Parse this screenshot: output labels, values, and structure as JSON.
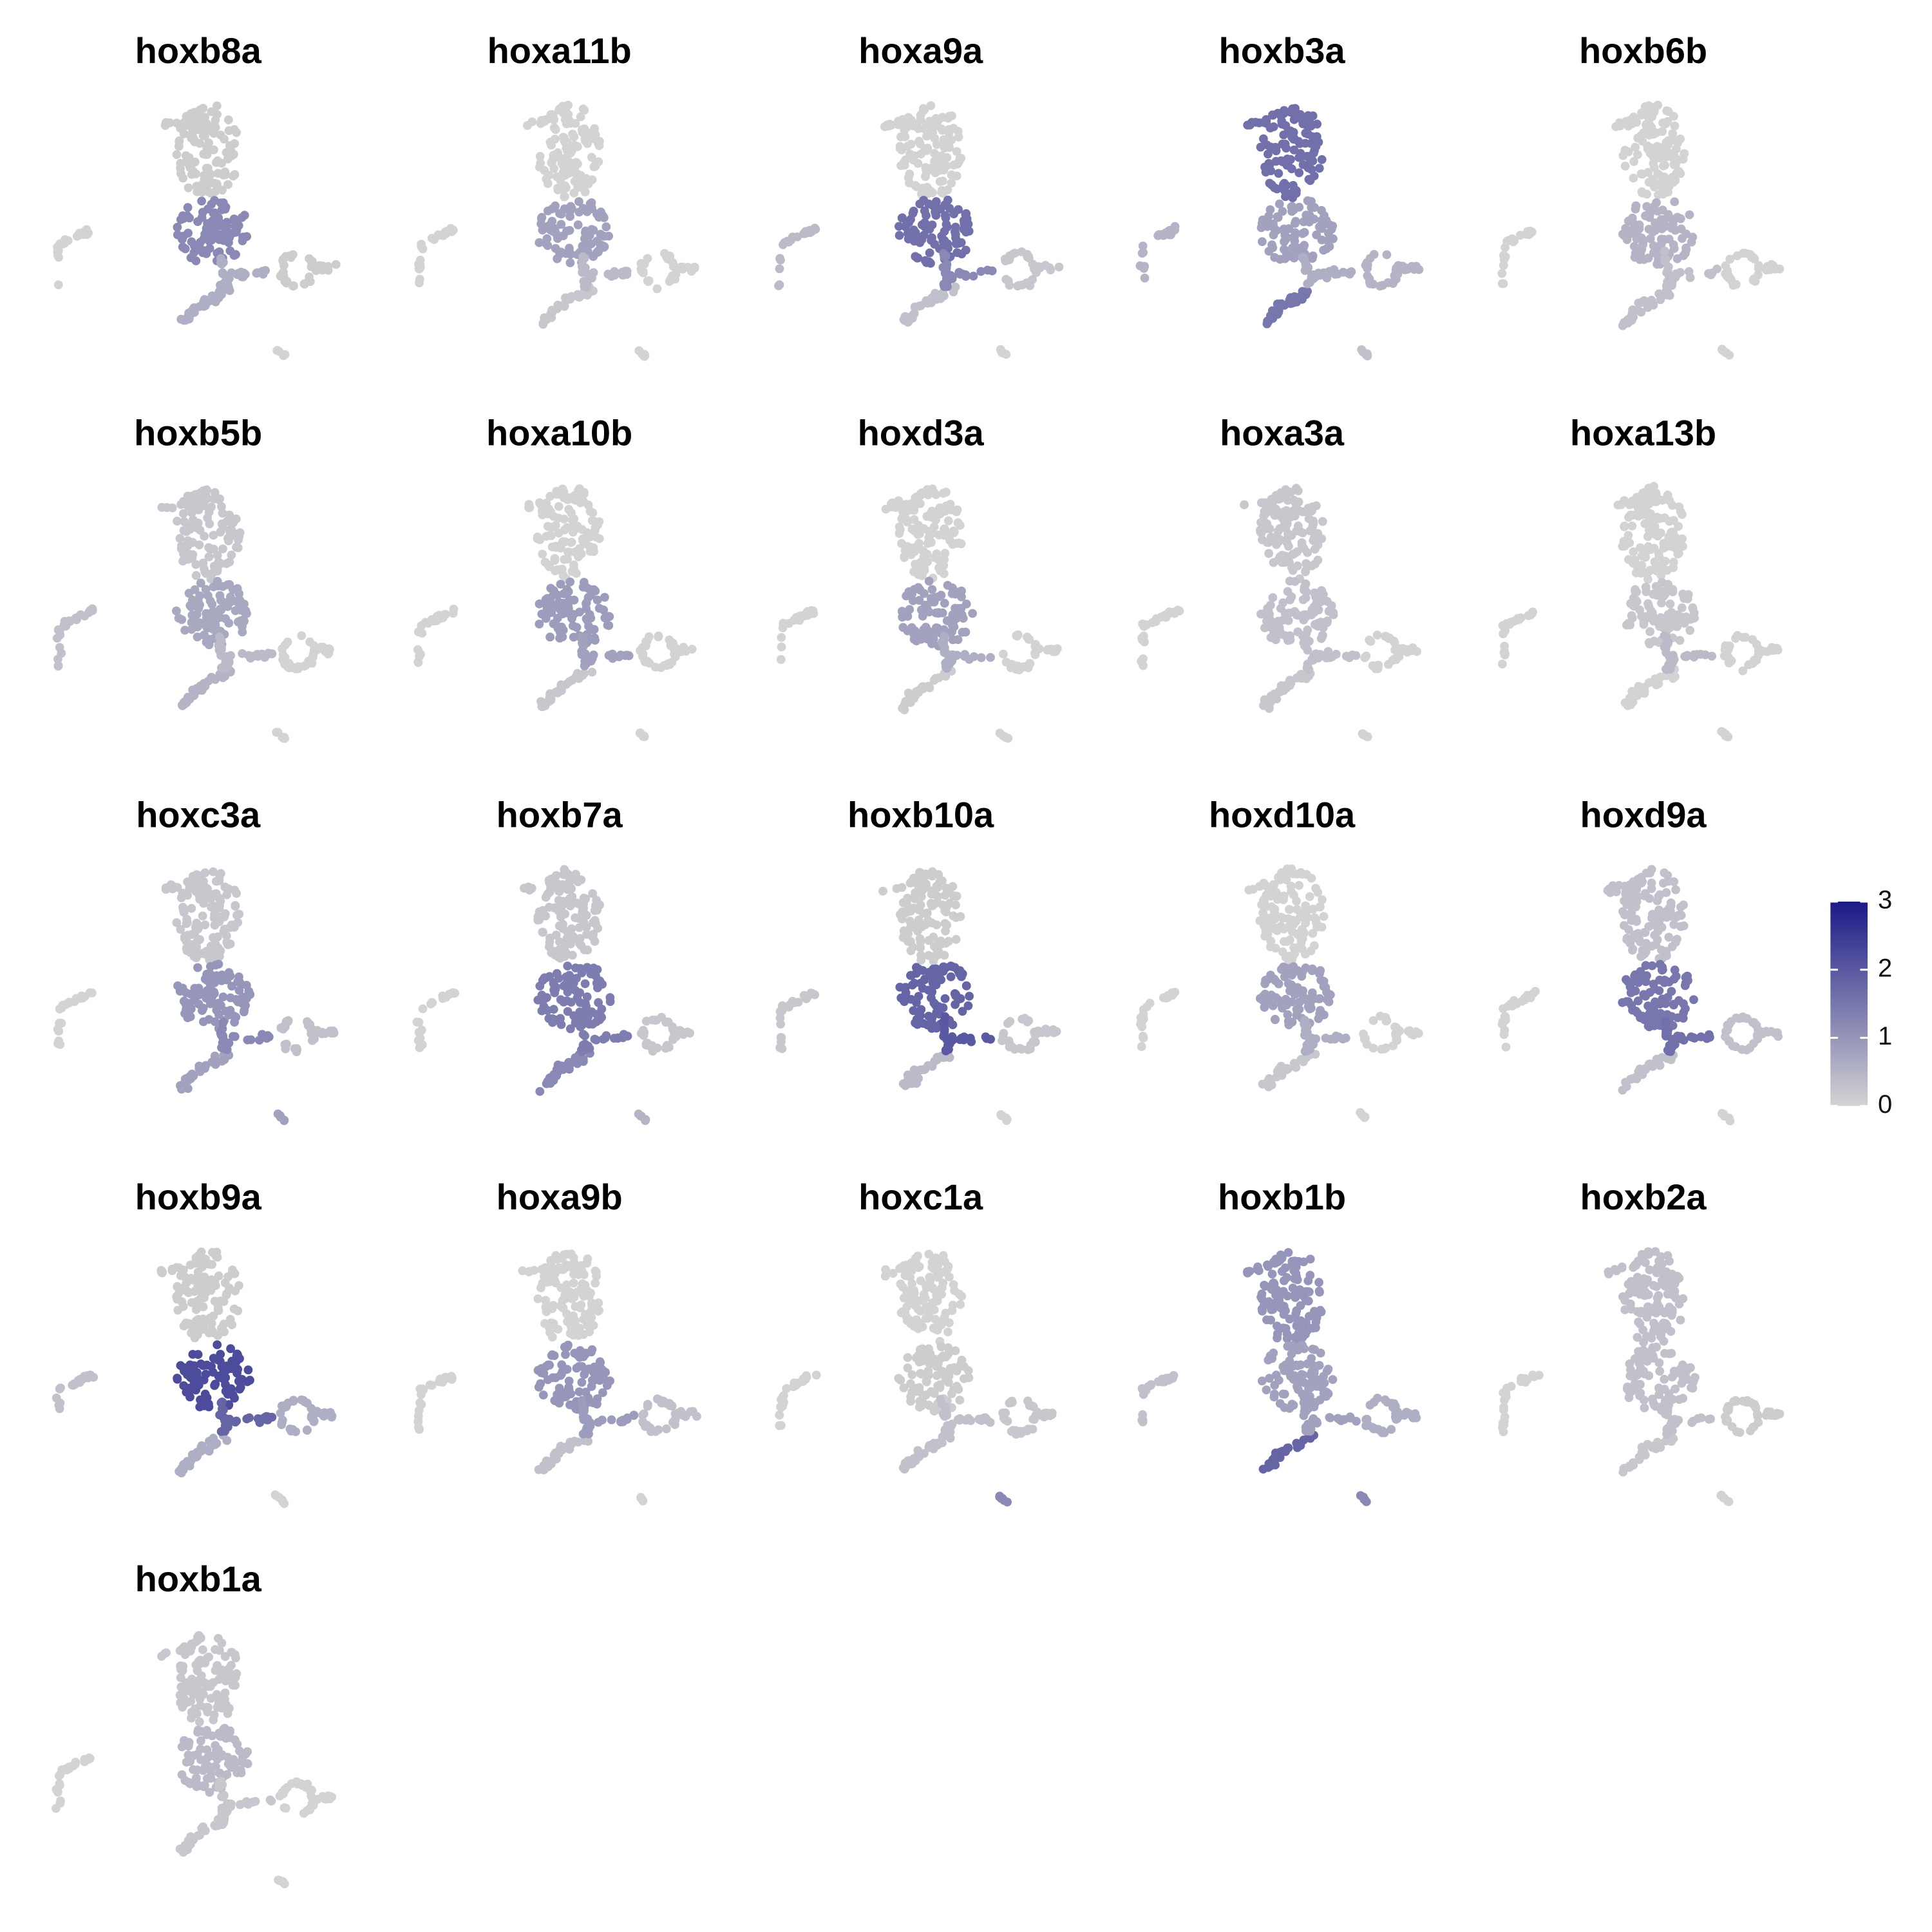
{
  "chart_data": [
    {
      "type": "scatter",
      "title": "hoxb8a",
      "values": [
        0.1,
        1.2,
        0.6,
        0.6,
        0.1,
        0,
        0
      ]
    },
    {
      "type": "scatter",
      "title": "hoxa11b",
      "values": [
        0,
        0.8,
        0.2,
        0.4,
        0,
        0,
        0
      ]
    },
    {
      "type": "scatter",
      "title": "hoxa9a",
      "values": [
        0,
        1.6,
        0.3,
        1.2,
        0.2,
        0.4,
        0
      ]
    },
    {
      "type": "scatter",
      "title": "hoxb3a",
      "values": [
        1.6,
        0.8,
        1.5,
        0.6,
        0.5,
        0.5,
        0.3
      ]
    },
    {
      "type": "scatter",
      "title": "hoxb6b",
      "values": [
        0,
        0.5,
        0.3,
        0.3,
        0,
        0,
        0
      ]
    },
    {
      "type": "scatter",
      "title": "hoxb5b",
      "values": [
        0.2,
        0.7,
        0.5,
        0.4,
        0,
        0.3,
        0
      ]
    },
    {
      "type": "scatter",
      "title": "hoxa10b",
      "values": [
        0,
        0.9,
        0.2,
        0.8,
        0,
        0,
        0
      ]
    },
    {
      "type": "scatter",
      "title": "hoxd3a",
      "values": [
        0,
        0.8,
        0.1,
        0.6,
        0,
        0,
        0
      ]
    },
    {
      "type": "scatter",
      "title": "hoxa3a",
      "values": [
        0.2,
        0.3,
        0.2,
        0.3,
        0,
        0,
        0
      ]
    },
    {
      "type": "scatter",
      "title": "hoxa13b",
      "values": [
        0,
        0.2,
        0,
        0.4,
        0,
        0,
        0
      ]
    },
    {
      "type": "scatter",
      "title": "hoxc3a",
      "values": [
        0.2,
        1.0,
        0.8,
        1.2,
        0.3,
        0,
        0.8
      ]
    },
    {
      "type": "scatter",
      "title": "hoxb7a",
      "values": [
        0.2,
        1.4,
        1.2,
        1.4,
        0.2,
        0,
        0.5
      ]
    },
    {
      "type": "scatter",
      "title": "hoxb10a",
      "values": [
        0.1,
        1.8,
        0.4,
        2.0,
        0.2,
        0.2,
        0
      ]
    },
    {
      "type": "scatter",
      "title": "hoxd10a",
      "values": [
        0,
        0.8,
        0.2,
        0.6,
        0,
        0,
        0
      ]
    },
    {
      "type": "scatter",
      "title": "hoxd9a",
      "values": [
        0.3,
        1.5,
        0.3,
        1.6,
        0.3,
        0,
        0
      ]
    },
    {
      "type": "scatter",
      "title": "hoxb9a",
      "values": [
        0.1,
        2.2,
        0.6,
        1.8,
        0.6,
        0.3,
        0
      ]
    },
    {
      "type": "scatter",
      "title": "hoxa9b",
      "values": [
        0,
        1.0,
        0.3,
        0.9,
        0.3,
        0,
        0
      ]
    },
    {
      "type": "scatter",
      "title": "hoxc1a",
      "values": [
        0,
        0.1,
        0.3,
        0.3,
        0.2,
        0,
        1.2
      ]
    },
    {
      "type": "scatter",
      "title": "hoxb1b",
      "values": [
        1.0,
        0.8,
        1.8,
        0.8,
        0.6,
        0.3,
        1.2
      ]
    },
    {
      "type": "scatter",
      "title": "hoxb2a",
      "values": [
        0.3,
        0.3,
        0.2,
        0.3,
        0.1,
        0,
        0
      ]
    },
    {
      "type": "scatter",
      "title": "hoxb1a",
      "values": [
        0.2,
        0.4,
        0.2,
        0.2,
        0,
        0,
        0
      ]
    }
  ],
  "colorbar": {
    "lim": [
      0,
      3
    ],
    "ticks": [
      0,
      1,
      2,
      3
    ],
    "colors": [
      "#d3d3d3",
      "#1c1a87"
    ],
    "position": "right"
  }
}
